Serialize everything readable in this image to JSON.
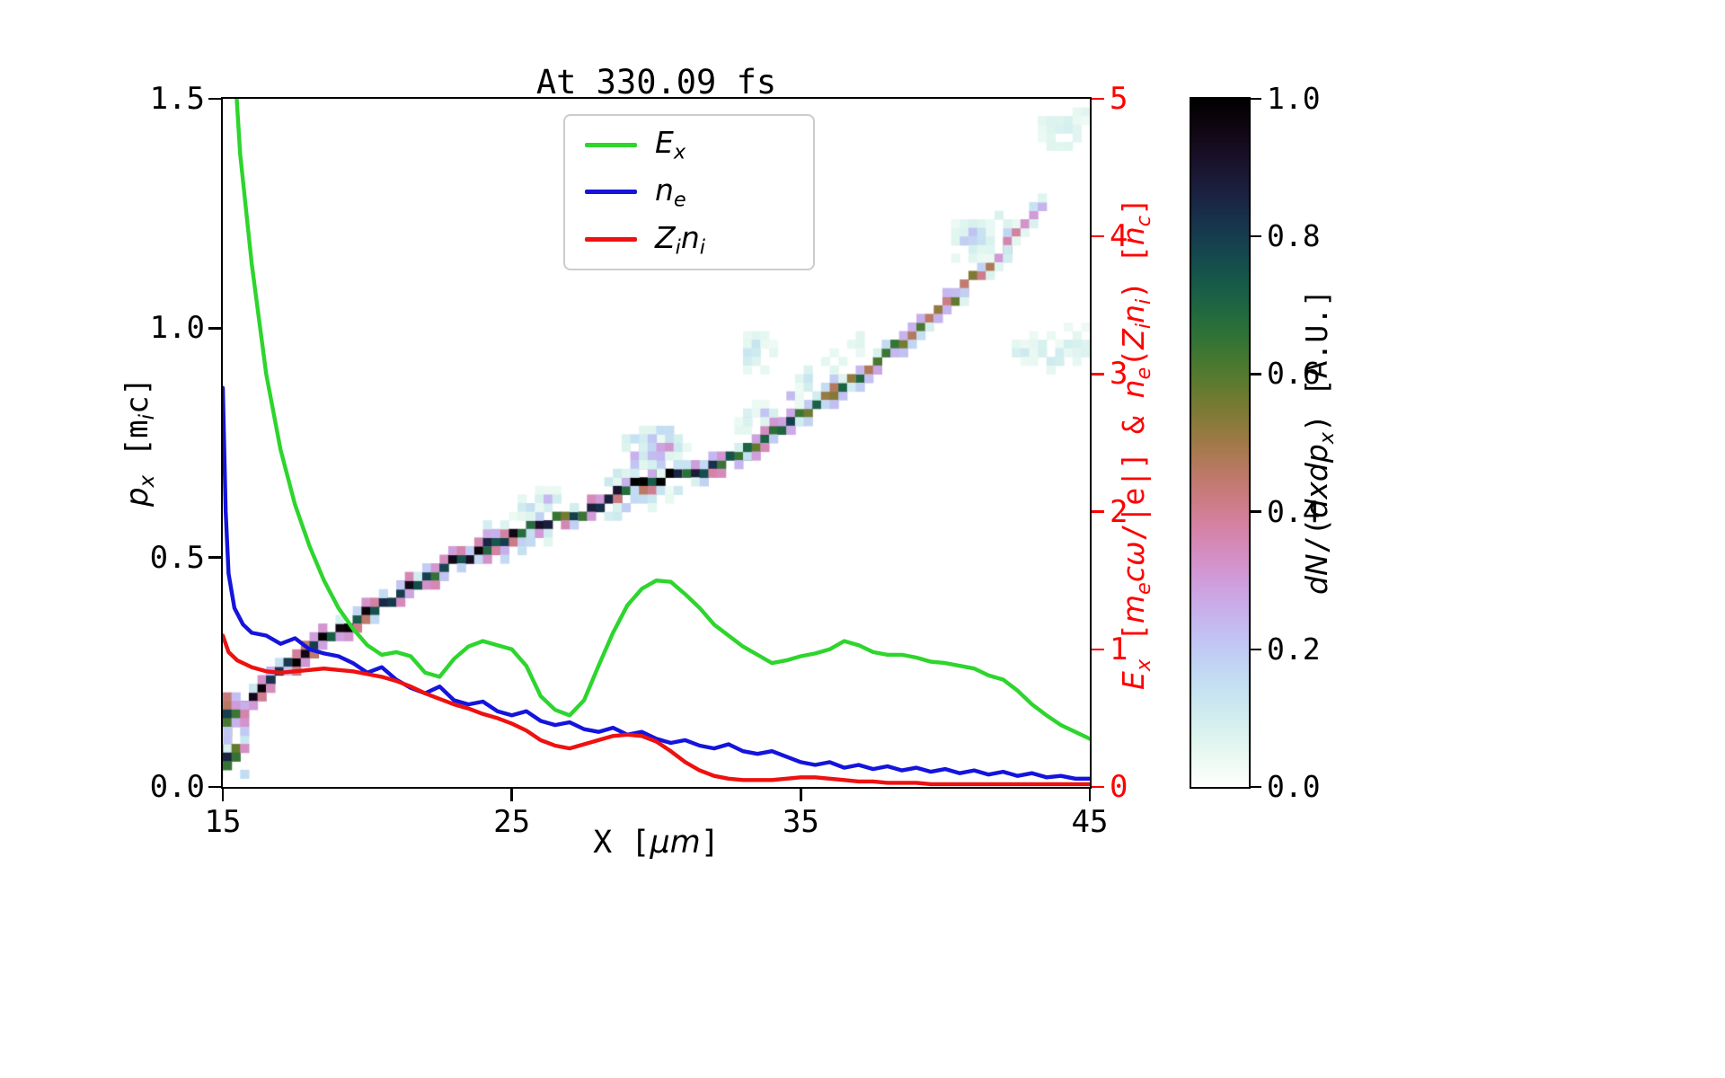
{
  "page": {
    "background": "#ffffff"
  },
  "chart_data": {
    "type": "line+heatmap",
    "title": "At 330.09 fs",
    "xlabel": "X [μm]",
    "ylabel_left": "p_x [m_i c]",
    "ylabel_right": "E_x [m_e cω/|e|] & n_e(Z_i n_i) [n_c]",
    "xlim": [
      15,
      45
    ],
    "ylim_left": [
      0,
      1.5
    ],
    "ylim_right": [
      0,
      5
    ],
    "grid": false,
    "legend_position": "upper center-left inside",
    "x_ticks": [
      {
        "v": 15,
        "label": "15"
      },
      {
        "v": 25,
        "label": "25"
      },
      {
        "v": 35,
        "label": "35"
      },
      {
        "v": 45,
        "label": "45"
      }
    ],
    "y_ticks_left": [
      {
        "v": 0.0,
        "label": "0.0"
      },
      {
        "v": 0.5,
        "label": "0.5"
      },
      {
        "v": 1.0,
        "label": "1.0"
      },
      {
        "v": 1.5,
        "label": "1.5"
      }
    ],
    "y_ticks_right": [
      {
        "v": 0,
        "label": "0"
      },
      {
        "v": 1,
        "label": "1"
      },
      {
        "v": 2,
        "label": "2"
      },
      {
        "v": 3,
        "label": "3"
      },
      {
        "v": 4,
        "label": "4"
      },
      {
        "v": 5,
        "label": "5"
      }
    ],
    "axis_colors": {
      "left": "#000000",
      "right": "#ff0000",
      "x": "#000000"
    },
    "xlabel_segments": [
      {
        "t": "X [",
        "k": "r"
      },
      {
        "t": "μm",
        "k": "i"
      },
      {
        "t": "]",
        "k": "r"
      }
    ],
    "ylabel_left_segments": [
      {
        "t": "p",
        "k": "i"
      },
      {
        "t": "x",
        "k": "si"
      },
      {
        "t": " [m",
        "k": "r"
      },
      {
        "t": "i",
        "k": "si"
      },
      {
        "t": "c]",
        "k": "r"
      }
    ],
    "ylabel_right_segments": [
      {
        "t": "E",
        "k": "i"
      },
      {
        "t": "x",
        "k": "si"
      },
      {
        "t": " [",
        "k": "r"
      },
      {
        "t": "m",
        "k": "i"
      },
      {
        "t": "e",
        "k": "si"
      },
      {
        "t": "c",
        "k": "i"
      },
      {
        "t": "ω",
        "k": "i"
      },
      {
        "t": "/|e|] & ",
        "k": "r"
      },
      {
        "t": "n",
        "k": "i"
      },
      {
        "t": "e",
        "k": "si"
      },
      {
        "t": "(",
        "k": "r"
      },
      {
        "t": "Z",
        "k": "i"
      },
      {
        "t": "i",
        "k": "si"
      },
      {
        "t": "n",
        "k": "i"
      },
      {
        "t": "i",
        "k": "si"
      },
      {
        "t": ") [",
        "k": "r"
      },
      {
        "t": "n",
        "k": "i"
      },
      {
        "t": "c",
        "k": "si"
      },
      {
        "t": "]",
        "k": "r"
      }
    ],
    "legend": {
      "entries": [
        {
          "name": "E_x",
          "color": "#2dd52d",
          "label_segments": [
            {
              "t": "E",
              "k": "i"
            },
            {
              "t": "x",
              "k": "si"
            }
          ]
        },
        {
          "name": "n_e",
          "color": "#1414dd",
          "label_segments": [
            {
              "t": "n",
              "k": "i"
            },
            {
              "t": "e",
              "k": "si"
            }
          ]
        },
        {
          "name": "Z_i n_i",
          "color": "#ee1111",
          "label_segments": [
            {
              "t": "Z",
              "k": "i"
            },
            {
              "t": "i",
              "k": "si"
            },
            {
              "t": "n",
              "k": "i"
            },
            {
              "t": "i",
              "k": "si"
            }
          ]
        }
      ]
    },
    "series": [
      {
        "name": "E_x",
        "axis": "right",
        "color": "#2dd52d",
        "x": [
          15,
          15.3,
          15.6,
          16,
          16.5,
          17,
          17.5,
          18,
          18.5,
          19,
          19.5,
          20,
          20.5,
          21,
          21.5,
          22,
          22.5,
          23,
          23.5,
          24,
          24.5,
          25,
          25.5,
          26,
          26.5,
          27,
          27.5,
          28,
          28.5,
          29,
          29.5,
          30,
          30.5,
          31,
          31.5,
          32,
          32.5,
          33,
          33.5,
          34,
          34.5,
          35,
          35.5,
          36,
          36.5,
          37,
          37.5,
          38,
          38.5,
          39,
          39.5,
          40,
          40.5,
          41,
          41.5,
          42,
          42.5,
          43,
          43.5,
          44,
          44.5,
          45
        ],
        "y": [
          7.0,
          5.6,
          4.6,
          3.8,
          3.0,
          2.45,
          2.05,
          1.75,
          1.5,
          1.3,
          1.15,
          1.03,
          0.96,
          0.98,
          0.95,
          0.83,
          0.8,
          0.93,
          1.02,
          1.06,
          1.03,
          1.0,
          0.88,
          0.66,
          0.56,
          0.52,
          0.63,
          0.88,
          1.12,
          1.32,
          1.44,
          1.5,
          1.49,
          1.4,
          1.3,
          1.18,
          1.1,
          1.02,
          0.96,
          0.9,
          0.92,
          0.95,
          0.97,
          1.0,
          1.06,
          1.03,
          0.98,
          0.96,
          0.96,
          0.94,
          0.91,
          0.9,
          0.88,
          0.86,
          0.81,
          0.78,
          0.7,
          0.6,
          0.52,
          0.45,
          0.4,
          0.35
        ]
      },
      {
        "name": "n_e",
        "axis": "right",
        "color": "#1414dd",
        "x": [
          15,
          15.1,
          15.2,
          15.4,
          15.7,
          16,
          16.5,
          17,
          17.5,
          18,
          18.5,
          19,
          19.5,
          20,
          20.5,
          21,
          21.5,
          22,
          22.5,
          23,
          23.5,
          24,
          24.5,
          25,
          25.5,
          26,
          26.5,
          27,
          27.5,
          28,
          28.5,
          29,
          29.5,
          30,
          30.5,
          31,
          31.5,
          32,
          32.5,
          33,
          33.5,
          34,
          34.5,
          35,
          35.5,
          36,
          36.5,
          37,
          37.5,
          38,
          38.5,
          39,
          39.5,
          40,
          40.5,
          41,
          41.5,
          42,
          42.5,
          43,
          43.5,
          44,
          44.5,
          45
        ],
        "y": [
          2.9,
          2.0,
          1.55,
          1.3,
          1.18,
          1.12,
          1.1,
          1.04,
          1.08,
          1.0,
          0.97,
          0.95,
          0.9,
          0.83,
          0.87,
          0.78,
          0.72,
          0.68,
          0.73,
          0.63,
          0.6,
          0.62,
          0.55,
          0.52,
          0.55,
          0.48,
          0.45,
          0.47,
          0.42,
          0.4,
          0.43,
          0.38,
          0.4,
          0.35,
          0.32,
          0.34,
          0.3,
          0.28,
          0.31,
          0.26,
          0.24,
          0.26,
          0.22,
          0.18,
          0.16,
          0.18,
          0.14,
          0.16,
          0.13,
          0.15,
          0.12,
          0.14,
          0.11,
          0.13,
          0.1,
          0.12,
          0.09,
          0.11,
          0.08,
          0.1,
          0.07,
          0.08,
          0.06,
          0.06
        ]
      },
      {
        "name": "Z_i n_i",
        "axis": "right",
        "color": "#ee1111",
        "x": [
          15,
          15.2,
          15.5,
          16,
          16.5,
          17,
          17.5,
          18,
          18.5,
          19,
          19.5,
          20,
          20.5,
          21,
          21.5,
          22,
          22.5,
          23,
          23.5,
          24,
          24.5,
          25,
          25.5,
          26,
          26.5,
          27,
          27.5,
          28,
          28.5,
          29,
          29.5,
          30,
          30.5,
          31,
          31.5,
          32,
          32.5,
          33,
          33.5,
          34,
          34.5,
          35,
          35.5,
          36,
          36.5,
          37,
          37.5,
          38,
          38.5,
          39,
          39.5,
          40,
          40.5,
          41,
          41.5,
          42,
          42.5,
          43,
          43.5,
          44,
          44.5,
          45
        ],
        "y": [
          1.1,
          0.98,
          0.92,
          0.87,
          0.84,
          0.83,
          0.84,
          0.85,
          0.86,
          0.85,
          0.84,
          0.82,
          0.8,
          0.77,
          0.73,
          0.68,
          0.64,
          0.6,
          0.57,
          0.53,
          0.5,
          0.46,
          0.41,
          0.34,
          0.3,
          0.28,
          0.31,
          0.34,
          0.37,
          0.38,
          0.37,
          0.33,
          0.26,
          0.18,
          0.12,
          0.08,
          0.06,
          0.05,
          0.05,
          0.05,
          0.06,
          0.07,
          0.07,
          0.06,
          0.05,
          0.04,
          0.04,
          0.03,
          0.03,
          0.03,
          0.02,
          0.02,
          0.02,
          0.02,
          0.02,
          0.02,
          0.02,
          0.02,
          0.02,
          0.02,
          0.02,
          0.02
        ]
      }
    ],
    "heatmap": {
      "quantity": "dN/(dxdp_x) [A.U.]",
      "quantity_segments": [
        {
          "t": "dN",
          "k": "i"
        },
        {
          "t": "/(",
          "k": "r"
        },
        {
          "t": "dxdp",
          "k": "i"
        },
        {
          "t": "x",
          "k": "si"
        },
        {
          "t": ") [A.U.]",
          "k": "r"
        }
      ],
      "colormap": "cubehelix_r",
      "clim": [
        0,
        1
      ],
      "colorbar_ticks": [
        {
          "v": 0.0,
          "label": "0.0"
        },
        {
          "v": 0.2,
          "label": "0.2"
        },
        {
          "v": 0.4,
          "label": "0.4"
        },
        {
          "v": 0.6,
          "label": "0.6"
        },
        {
          "v": 0.8,
          "label": "0.8"
        },
        {
          "v": 1.0,
          "label": "1.0"
        }
      ],
      "ridge": [
        [
          15.0,
          0.12,
          0.95,
          2
        ],
        [
          15.5,
          0.16,
          0.9,
          1
        ],
        [
          16,
          0.2,
          0.95,
          1
        ],
        [
          16.5,
          0.23,
          0.9,
          1
        ],
        [
          17,
          0.255,
          0.92,
          1
        ],
        [
          17.5,
          0.28,
          0.9,
          1
        ],
        [
          18,
          0.3,
          0.93,
          1
        ],
        [
          18.5,
          0.32,
          0.88,
          1
        ],
        [
          19,
          0.34,
          0.85,
          1
        ],
        [
          19.5,
          0.36,
          0.9,
          1
        ],
        [
          20,
          0.38,
          0.93,
          1
        ],
        [
          20.5,
          0.4,
          0.88,
          1
        ],
        [
          21,
          0.42,
          0.8,
          1
        ],
        [
          21.5,
          0.44,
          0.85,
          1
        ],
        [
          22,
          0.455,
          0.7,
          1
        ],
        [
          22.5,
          0.47,
          0.75,
          1
        ],
        [
          23,
          0.49,
          0.8,
          1
        ],
        [
          23.5,
          0.505,
          0.85,
          1
        ],
        [
          24,
          0.52,
          0.8,
          1
        ],
        [
          24.5,
          0.535,
          0.78,
          2
        ],
        [
          25,
          0.55,
          0.85,
          2
        ],
        [
          25.5,
          0.565,
          0.9,
          2
        ],
        [
          26,
          0.575,
          0.85,
          2
        ],
        [
          26.5,
          0.585,
          0.8,
          1
        ],
        [
          27,
          0.59,
          0.72,
          1
        ],
        [
          27.5,
          0.6,
          0.75,
          1
        ],
        [
          28,
          0.615,
          0.8,
          1
        ],
        [
          28.5,
          0.63,
          0.85,
          2
        ],
        [
          29,
          0.65,
          0.9,
          2
        ],
        [
          29.5,
          0.665,
          0.95,
          3
        ],
        [
          30,
          0.675,
          0.92,
          3
        ],
        [
          30.5,
          0.68,
          0.88,
          3
        ],
        [
          31,
          0.682,
          0.8,
          2
        ],
        [
          31.5,
          0.687,
          0.72,
          1
        ],
        [
          32,
          0.7,
          0.75,
          1
        ],
        [
          32.5,
          0.714,
          0.7,
          1
        ],
        [
          33,
          0.73,
          0.75,
          1
        ],
        [
          33.5,
          0.75,
          0.72,
          1
        ],
        [
          34,
          0.77,
          0.75,
          1
        ],
        [
          34.5,
          0.79,
          0.7,
          1
        ],
        [
          35,
          0.815,
          0.65,
          1
        ],
        [
          35.5,
          0.835,
          0.7,
          1
        ],
        [
          36,
          0.855,
          0.65,
          1
        ],
        [
          36.5,
          0.875,
          0.6,
          1
        ],
        [
          37,
          0.9,
          0.65,
          1
        ],
        [
          37.5,
          0.92,
          0.6,
          1
        ],
        [
          38,
          0.945,
          0.55,
          1
        ],
        [
          38.5,
          0.97,
          0.6,
          1
        ],
        [
          39,
          0.995,
          0.55,
          1
        ],
        [
          39.5,
          1.02,
          0.5,
          1
        ],
        [
          40,
          1.05,
          0.55,
          1
        ],
        [
          40.5,
          1.08,
          0.5,
          1
        ],
        [
          41,
          1.11,
          0.45,
          1
        ],
        [
          41.5,
          1.14,
          0.4,
          1
        ],
        [
          42,
          1.17,
          0.42,
          1
        ],
        [
          42.5,
          1.21,
          0.35,
          1
        ],
        [
          43,
          1.25,
          0.3,
          1
        ],
        [
          43.5,
          1.29,
          0.22,
          1
        ]
      ],
      "faint": [
        [
          15.05,
          0.07,
          0.85,
          2
        ],
        [
          15.1,
          0.16,
          0.8,
          2
        ],
        [
          25.6,
          0.61,
          0.3,
          1
        ],
        [
          26.1,
          0.63,
          0.2,
          1
        ],
        [
          29.6,
          0.73,
          0.4,
          2
        ],
        [
          30.2,
          0.745,
          0.35,
          2
        ],
        [
          30.8,
          0.72,
          0.3,
          1
        ],
        [
          33.0,
          0.79,
          0.22,
          1
        ],
        [
          33.8,
          0.82,
          0.18,
          1
        ],
        [
          34.6,
          0.86,
          0.2,
          1
        ],
        [
          35.4,
          0.9,
          0.18,
          1
        ],
        [
          36.2,
          0.935,
          0.15,
          1
        ],
        [
          37.0,
          0.97,
          0.12,
          1
        ],
        [
          33.6,
          0.95,
          0.15,
          2
        ],
        [
          41.0,
          1.2,
          0.22,
          2
        ],
        [
          41.7,
          1.235,
          0.16,
          1
        ],
        [
          44.0,
          1.44,
          0.18,
          2
        ],
        [
          44.7,
          1.47,
          0.12,
          1
        ],
        [
          42.9,
          0.955,
          0.1,
          2
        ],
        [
          43.7,
          0.95,
          0.12,
          2
        ],
        [
          44.5,
          0.96,
          0.1,
          2
        ]
      ]
    }
  }
}
